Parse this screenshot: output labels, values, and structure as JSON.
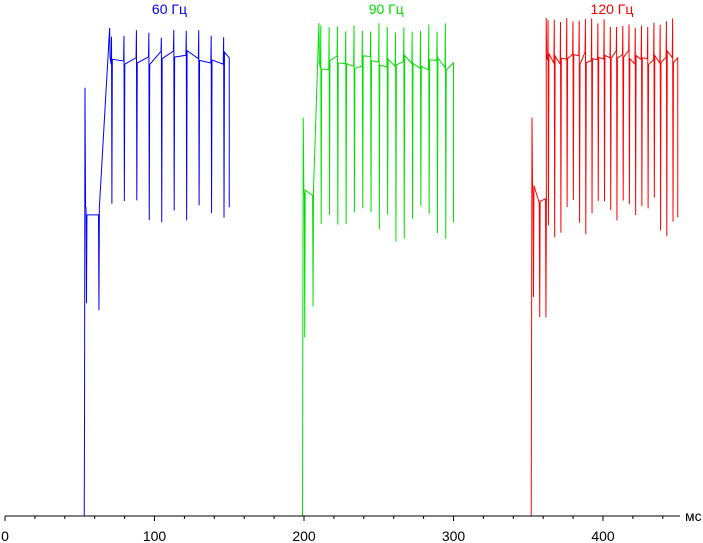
{
  "chart_data": {
    "type": "line",
    "title": "",
    "xlabel": "мс",
    "ylabel": "",
    "xlim": [
      0,
      470
    ],
    "ylim": [
      0,
      100
    ],
    "grid": false,
    "x_ticks": [
      "0",
      "100",
      "200",
      "300",
      "400"
    ],
    "x_tick_values": [
      0,
      100,
      200,
      300,
      400
    ],
    "series": [
      {
        "name": "60 Гц",
        "color": "#0000ff",
        "t_start": 0,
        "t_rise": 53,
        "t_end": 150,
        "refresh_hz": 60,
        "baseline": 0,
        "rise_level": 20,
        "settled_level": 92,
        "spike_high": 98,
        "spike_low": 58,
        "transition_end": 70,
        "transition_level": 62,
        "initial_spike": 86
      },
      {
        "name": "90 Гц",
        "color": "#00e000",
        "t_start": 150,
        "t_rise": 199,
        "t_end": 300,
        "refresh_hz": 90,
        "baseline": 0,
        "rise_level": 0,
        "settled_level": 91,
        "spike_high": 99,
        "spike_low": 55,
        "transition_end": 210,
        "transition_level": 65,
        "initial_spike": 80
      },
      {
        "name": "120 Гц",
        "color": "#ff0000",
        "t_start": 300,
        "t_rise": 352,
        "t_end": 450,
        "refresh_hz": 120,
        "baseline": 0,
        "rise_level": 0,
        "settled_level": 92,
        "spike_high": 100,
        "spike_low": 56,
        "transition_end": 362,
        "transition_level": 65,
        "initial_spike": 80
      }
    ]
  }
}
